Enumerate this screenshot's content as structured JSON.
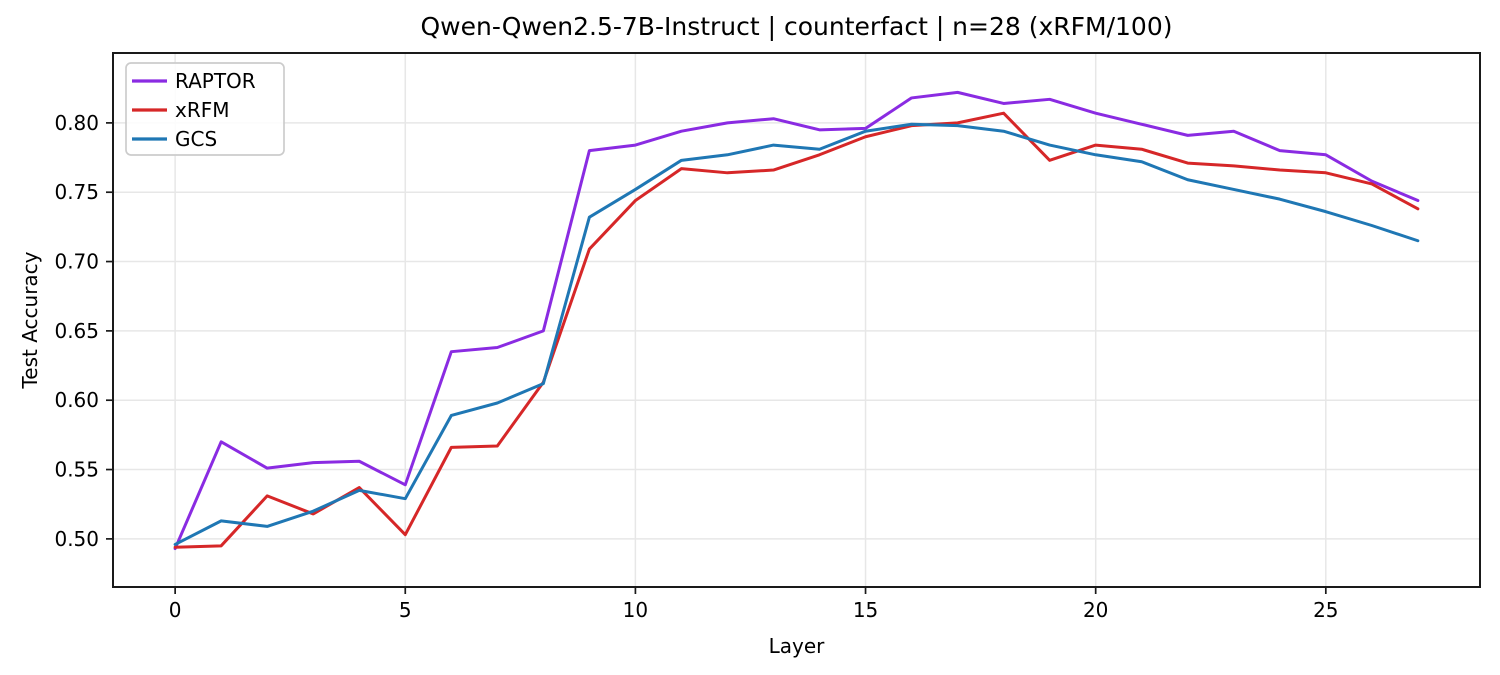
{
  "chart_data": {
    "type": "line",
    "title": "Qwen-Qwen2.5-7B-Instruct | counterfact | n=28 (xRFM/100)",
    "xlabel": "Layer",
    "ylabel": "Test Accuracy",
    "x": [
      0,
      1,
      2,
      3,
      4,
      5,
      6,
      7,
      8,
      9,
      10,
      11,
      12,
      13,
      14,
      15,
      16,
      17,
      18,
      19,
      20,
      21,
      22,
      23,
      24,
      25,
      26,
      27
    ],
    "series": [
      {
        "name": "RAPTOR",
        "color": "#8a2be2",
        "values": [
          0.493,
          0.57,
          0.551,
          0.555,
          0.556,
          0.539,
          0.635,
          0.638,
          0.65,
          0.78,
          0.784,
          0.794,
          0.8,
          0.803,
          0.795,
          0.796,
          0.818,
          0.822,
          0.814,
          0.817,
          0.807,
          0.799,
          0.791,
          0.794,
          0.78,
          0.777,
          0.758,
          0.744
        ]
      },
      {
        "name": "xRFM",
        "color": "#d62728",
        "values": [
          0.494,
          0.495,
          0.531,
          0.518,
          0.537,
          0.503,
          0.566,
          0.567,
          0.613,
          0.709,
          0.744,
          0.767,
          0.764,
          0.766,
          0.777,
          0.79,
          0.798,
          0.8,
          0.807,
          0.773,
          0.784,
          0.781,
          0.771,
          0.769,
          0.766,
          0.764,
          0.756,
          0.738
        ]
      },
      {
        "name": "GCS",
        "color": "#1f77b4",
        "values": [
          0.496,
          0.513,
          0.509,
          0.52,
          0.535,
          0.529,
          0.589,
          0.598,
          0.612,
          0.732,
          0.752,
          0.773,
          0.777,
          0.784,
          0.781,
          0.794,
          0.799,
          0.798,
          0.794,
          0.784,
          0.777,
          0.772,
          0.759,
          0.752,
          0.745,
          0.736,
          0.726,
          0.715
        ]
      }
    ],
    "xlim": [
      -1.35,
      28.35
    ],
    "ylim": [
      0.4653,
      0.8504
    ],
    "xticks": [
      0,
      5,
      10,
      15,
      20,
      25
    ],
    "xtick_labels": [
      "0",
      "5",
      "10",
      "15",
      "20",
      "25"
    ],
    "yticks": [
      0.5,
      0.55,
      0.6,
      0.65,
      0.7,
      0.75,
      0.8
    ],
    "ytick_labels": [
      "0.50",
      "0.55",
      "0.60",
      "0.65",
      "0.70",
      "0.75",
      "0.80"
    ],
    "grid": true,
    "grid_color": "#e7e7e7",
    "spine_color": "#1a1a1a",
    "background": "#ffffff",
    "legend_position": "upper left",
    "legend_entries": [
      "RAPTOR",
      "xRFM",
      "GCS"
    ]
  }
}
